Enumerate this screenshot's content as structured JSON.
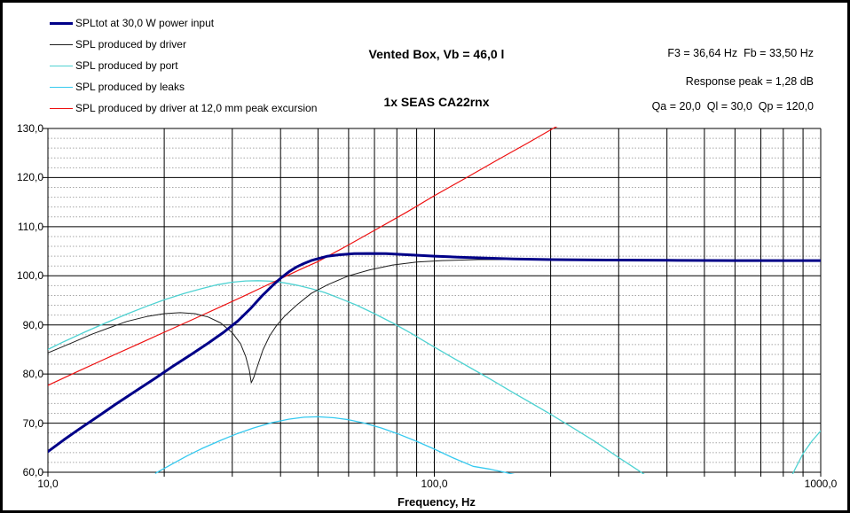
{
  "title": {
    "line1": "Vented Box, Vb = 46,0 l",
    "line2": "1x SEAS CA22rnx"
  },
  "stats": {
    "f3_fb": "F3 = 36,64 Hz  Fb = 33,50 Hz",
    "response_peak": "Response peak = 1,28 dB",
    "q_values": "Qa = 20,0  Ql = 30,0  Qp = 120,0"
  },
  "chart_data": {
    "type": "line",
    "title": "Vented Box, Vb = 46,0 l / 1x SEAS CA22rnx",
    "x_axis": {
      "label": "Frequency, Hz",
      "scale": "log",
      "min": 10,
      "max": 1000,
      "ticks": [
        {
          "value": 10,
          "label": "10,0"
        },
        {
          "value": 100,
          "label": "100,0"
        },
        {
          "value": 1000,
          "label": "1000,0"
        }
      ],
      "gridlines": "solid black at 2..9 multiples of each decade"
    },
    "y_axis": {
      "label": "",
      "unit": "dB SPL",
      "min": 60,
      "max": 130,
      "major_step": 10,
      "minor_step": 2,
      "ticks": [
        {
          "value": 130,
          "label": "130,0"
        },
        {
          "value": 120,
          "label": "120,0"
        },
        {
          "value": 110,
          "label": "110,0"
        },
        {
          "value": 100,
          "label": "100,0"
        },
        {
          "value": 90,
          "label": "90,0"
        },
        {
          "value": 80,
          "label": "80,0"
        },
        {
          "value": 70,
          "label": "70,0"
        },
        {
          "value": 60,
          "label": "60,0"
        }
      ],
      "minor_grid_style": "dotted gray",
      "major_grid_style": "solid black"
    },
    "legend_position": "top-left",
    "grid": true,
    "colors": {
      "major_grid": "#000000",
      "minor_grid": "#a6a6a6",
      "background": "#ffffff"
    },
    "series": [
      {
        "name": "SPLtot at 30,0 W power input",
        "color": "#000088",
        "width": 3,
        "z": 5,
        "points": [
          [
            10,
            64.2
          ],
          [
            11,
            66.6
          ],
          [
            12,
            68.7
          ],
          [
            13.5,
            71.4
          ],
          [
            15,
            73.9
          ],
          [
            17,
            76.7
          ],
          [
            19,
            79.2
          ],
          [
            21,
            81.5
          ],
          [
            23.5,
            84.0
          ],
          [
            26,
            86.3
          ],
          [
            28.5,
            88.5
          ],
          [
            31,
            90.8
          ],
          [
            33.5,
            93.4
          ],
          [
            36,
            96.1
          ],
          [
            38,
            97.9
          ],
          [
            40,
            99.5
          ],
          [
            42,
            100.8
          ],
          [
            44,
            101.8
          ],
          [
            46,
            102.5
          ],
          [
            48,
            103.1
          ],
          [
            50,
            103.5
          ],
          [
            53,
            104.0
          ],
          [
            57,
            104.3
          ],
          [
            62,
            104.5
          ],
          [
            68,
            104.55
          ],
          [
            75,
            104.5
          ],
          [
            85,
            104.3
          ],
          [
            100,
            104.0
          ],
          [
            115,
            103.8
          ],
          [
            135,
            103.6
          ],
          [
            160,
            103.45
          ],
          [
            200,
            103.3
          ],
          [
            280,
            103.2
          ],
          [
            400,
            103.15
          ],
          [
            600,
            103.1
          ],
          [
            1000,
            103.1
          ]
        ]
      },
      {
        "name": "SPL produced by driver",
        "color": "#1c1c1c",
        "width": 1,
        "z": 4,
        "points": [
          [
            10,
            84.3
          ],
          [
            11.5,
            86.3
          ],
          [
            13,
            88.1
          ],
          [
            14.5,
            89.5
          ],
          [
            16,
            90.7
          ],
          [
            18,
            91.7
          ],
          [
            20,
            92.3
          ],
          [
            22,
            92.5
          ],
          [
            24,
            92.3
          ],
          [
            26,
            91.6
          ],
          [
            28,
            90.4
          ],
          [
            30,
            88.4
          ],
          [
            31.5,
            86.2
          ],
          [
            32.5,
            83.6
          ],
          [
            33.2,
            80.8
          ],
          [
            33.6,
            78.2
          ],
          [
            34.1,
            79.3
          ],
          [
            35,
            82.0
          ],
          [
            36,
            84.9
          ],
          [
            37.5,
            87.8
          ],
          [
            39,
            89.8
          ],
          [
            41,
            91.8
          ],
          [
            44,
            94.0
          ],
          [
            48,
            96.4
          ],
          [
            53,
            98.2
          ],
          [
            60,
            100.0
          ],
          [
            68,
            101.2
          ],
          [
            78,
            102.2
          ],
          [
            90,
            102.8
          ],
          [
            105,
            103.1
          ],
          [
            130,
            103.3
          ],
          [
            170,
            103.3
          ],
          [
            220,
            103.25
          ],
          [
            300,
            103.2
          ],
          [
            500,
            103.1
          ],
          [
            1000,
            103.1
          ]
        ]
      },
      {
        "name": "SPL produced by port",
        "color": "#4fd2d2",
        "width": 1.3,
        "z": 2,
        "points": [
          [
            10,
            85.0
          ],
          [
            11,
            86.6
          ],
          [
            12.5,
            88.6
          ],
          [
            14,
            90.3
          ],
          [
            16,
            92.2
          ],
          [
            18,
            93.8
          ],
          [
            20,
            95.1
          ],
          [
            22.5,
            96.4
          ],
          [
            25,
            97.4
          ],
          [
            27.5,
            98.2
          ],
          [
            30,
            98.7
          ],
          [
            32.5,
            98.95
          ],
          [
            35,
            99.0
          ],
          [
            38,
            98.9
          ],
          [
            41,
            98.55
          ],
          [
            44,
            98.1
          ],
          [
            48,
            97.4
          ],
          [
            52,
            96.6
          ],
          [
            57,
            95.4
          ],
          [
            63,
            94.0
          ],
          [
            70,
            92.3
          ],
          [
            78,
            90.4
          ],
          [
            87,
            88.3
          ],
          [
            97,
            86.1
          ],
          [
            110,
            83.6
          ],
          [
            125,
            81.1
          ],
          [
            140,
            78.9
          ],
          [
            160,
            76.2
          ],
          [
            180,
            73.9
          ],
          [
            200,
            71.8
          ],
          [
            230,
            68.9
          ],
          [
            260,
            66.3
          ],
          [
            300,
            63.0
          ],
          [
            340,
            60.2
          ],
          [
            380,
            57.6
          ],
          [
            450,
            54.0
          ],
          [
            550,
            50.5
          ],
          [
            650,
            48.5
          ],
          [
            720,
            50.5
          ],
          [
            780,
            54.5
          ],
          [
            820,
            57.5
          ],
          [
            860,
            60.8
          ],
          [
            900,
            63.8
          ],
          [
            950,
            66.4
          ],
          [
            1000,
            68.4
          ]
        ]
      },
      {
        "name": "SPL produced by leaks",
        "color": "#35c9ef",
        "width": 1.3,
        "z": 1,
        "points": [
          [
            19,
            59.8
          ],
          [
            21,
            61.7
          ],
          [
            23,
            63.4
          ],
          [
            25,
            64.8
          ],
          [
            28,
            66.5
          ],
          [
            31,
            67.9
          ],
          [
            34,
            69.0
          ],
          [
            38,
            70.1
          ],
          [
            42,
            70.8
          ],
          [
            46,
            71.2
          ],
          [
            50,
            71.3
          ],
          [
            55,
            71.1
          ],
          [
            60,
            70.7
          ],
          [
            66,
            70.0
          ],
          [
            73,
            69.0
          ],
          [
            80,
            67.9
          ],
          [
            90,
            66.3
          ],
          [
            100,
            64.7
          ],
          [
            112,
            62.9
          ],
          [
            126,
            61.2
          ],
          [
            140,
            60.6
          ],
          [
            152,
            60.0
          ],
          [
            162,
            59.5
          ]
        ]
      },
      {
        "name": "SPL produced by driver at 12,0 mm peak excursion",
        "color": "#ee1111",
        "width": 1.2,
        "z": 3,
        "points": [
          [
            10,
            77.7
          ],
          [
            12,
            80.6
          ],
          [
            14,
            83.0
          ],
          [
            17,
            86.0
          ],
          [
            20,
            88.5
          ],
          [
            24,
            91.3
          ],
          [
            28,
            93.7
          ],
          [
            32,
            95.8
          ],
          [
            36,
            97.7
          ],
          [
            40,
            99.4
          ],
          [
            45,
            101.3
          ],
          [
            50,
            102.9
          ],
          [
            60,
            106.3
          ],
          [
            72,
            109.8
          ],
          [
            85,
            113.0
          ],
          [
            100,
            116.3
          ],
          [
            120,
            119.8
          ],
          [
            145,
            123.5
          ],
          [
            175,
            127.1
          ],
          [
            205,
            130.2
          ],
          [
            215,
            131.0
          ]
        ]
      }
    ]
  }
}
